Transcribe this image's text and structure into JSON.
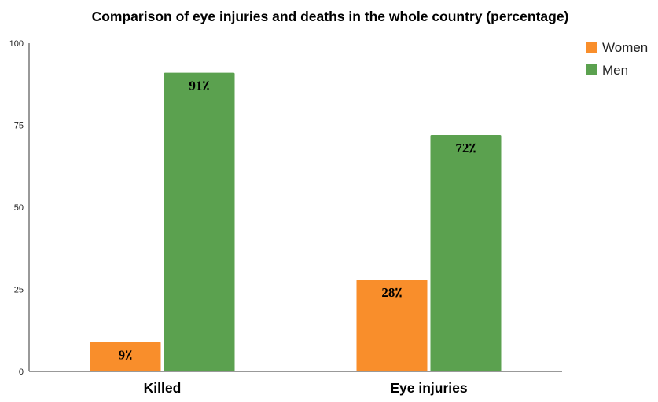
{
  "chart_data": {
    "type": "bar",
    "title": "Comparison of eye injuries and deaths in the whole country (percentage)",
    "xlabel": "",
    "ylabel": "",
    "categories": [
      "Killed",
      "Eye injuries"
    ],
    "series": [
      {
        "name": "Women",
        "color": "#f98e2b",
        "values": [
          9,
          28
        ],
        "labels": [
          "9٪",
          "28٪"
        ]
      },
      {
        "name": "Men",
        "color": "#5ba14f",
        "values": [
          91,
          72
        ],
        "labels": [
          "91٪",
          "72٪"
        ]
      }
    ],
    "ylim": [
      0,
      100
    ],
    "yticks": [
      "0",
      "25",
      "50",
      "75",
      "100"
    ],
    "grid": false,
    "legend": "top-right"
  }
}
